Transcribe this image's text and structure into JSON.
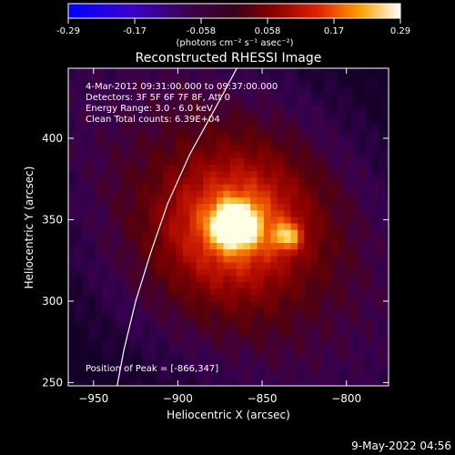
{
  "chart_data": {
    "type": "heatmap",
    "title": "Reconstructed RHESSI Image",
    "xlabel": "Heliocentric X (arcsec)",
    "ylabel": "Heliocentric Y (arcsec)",
    "xlim": [
      -965,
      -775
    ],
    "ylim": [
      248,
      443
    ],
    "x_ticks": [
      -950,
      -900,
      -850,
      -800
    ],
    "y_ticks": [
      250,
      300,
      350,
      400
    ],
    "colorbar": {
      "ticks": [
        "-0.29",
        "-0.17",
        "-0.058",
        "0.058",
        "0.17",
        "0.29"
      ],
      "range": [
        -0.29,
        0.29
      ],
      "unit_label": "(photons cm⁻² s⁻¹ asec⁻²)"
    },
    "info_lines": [
      "4-Mar-2012 09:31:00.000 to 09:37:00.000",
      "Detectors: 3F 5F 6F 7F 8F, Att 0",
      "Energy Range: 3.0 - 6.0 keV",
      "Clean     Total counts: 6.39E+04"
    ],
    "peak_label": "Position of Peak = [-866,347]",
    "peak": [
      -866,
      347
    ],
    "secondary_source": [
      -835,
      340
    ],
    "limb": [
      [
        -936,
        248
      ],
      [
        -932,
        270
      ],
      [
        -925,
        300
      ],
      [
        -916,
        330
      ],
      [
        -906,
        360
      ],
      [
        -893,
        390
      ],
      [
        -877,
        420
      ],
      [
        -865,
        443
      ]
    ],
    "grid": false,
    "legend": "none"
  },
  "footer": {
    "timestamp": "9-May-2022 04:56"
  }
}
